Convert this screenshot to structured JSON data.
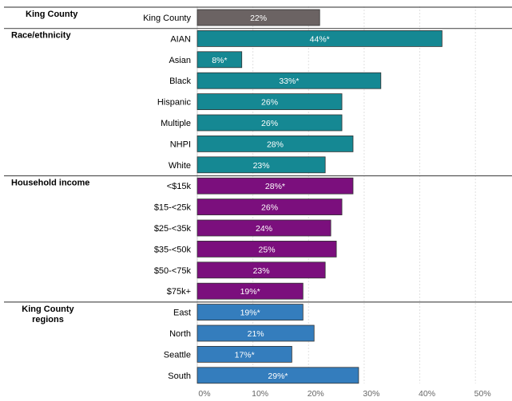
{
  "chart_data": {
    "type": "bar",
    "orientation": "horizontal",
    "xlim": [
      0,
      55
    ],
    "x_ticks": [
      "0%",
      "10%",
      "20%",
      "30%",
      "40%",
      "50%"
    ],
    "x_tick_values": [
      0,
      10,
      20,
      30,
      40,
      50
    ],
    "grid": true,
    "groups": [
      {
        "name": "King County",
        "color": "#6b6363",
        "categories": [
          "King County"
        ],
        "values": [
          22
        ],
        "labels": [
          "22%"
        ]
      },
      {
        "name": "Race/ethnicity",
        "color": "#158893",
        "categories": [
          "AIAN",
          "Asian",
          "Black",
          "Hispanic",
          "Multiple",
          "NHPI",
          "White"
        ],
        "values": [
          44,
          8,
          33,
          26,
          26,
          28,
          23
        ],
        "labels": [
          "44%*",
          "8%*",
          "33%*",
          "26%",
          "26%",
          "28%",
          "23%"
        ]
      },
      {
        "name": "Household income",
        "color": "#7b0f7d",
        "categories": [
          "<$15k",
          "$15-<25k",
          "$25-<35k",
          "$35-<50k",
          "$50-<75k",
          "$75k+"
        ],
        "values": [
          28,
          26,
          24,
          25,
          23,
          19
        ],
        "labels": [
          "28%*",
          "26%",
          "24%",
          "25%",
          "23%",
          "19%*"
        ]
      },
      {
        "name": "King County regions",
        "name_lines": [
          "King County",
          "regions"
        ],
        "color": "#347dbd",
        "categories": [
          "East",
          "North",
          "Seattle",
          "South"
        ],
        "values": [
          19,
          21,
          17,
          29
        ],
        "labels": [
          "19%*",
          "21%",
          "17%*",
          "29%*"
        ]
      }
    ]
  }
}
